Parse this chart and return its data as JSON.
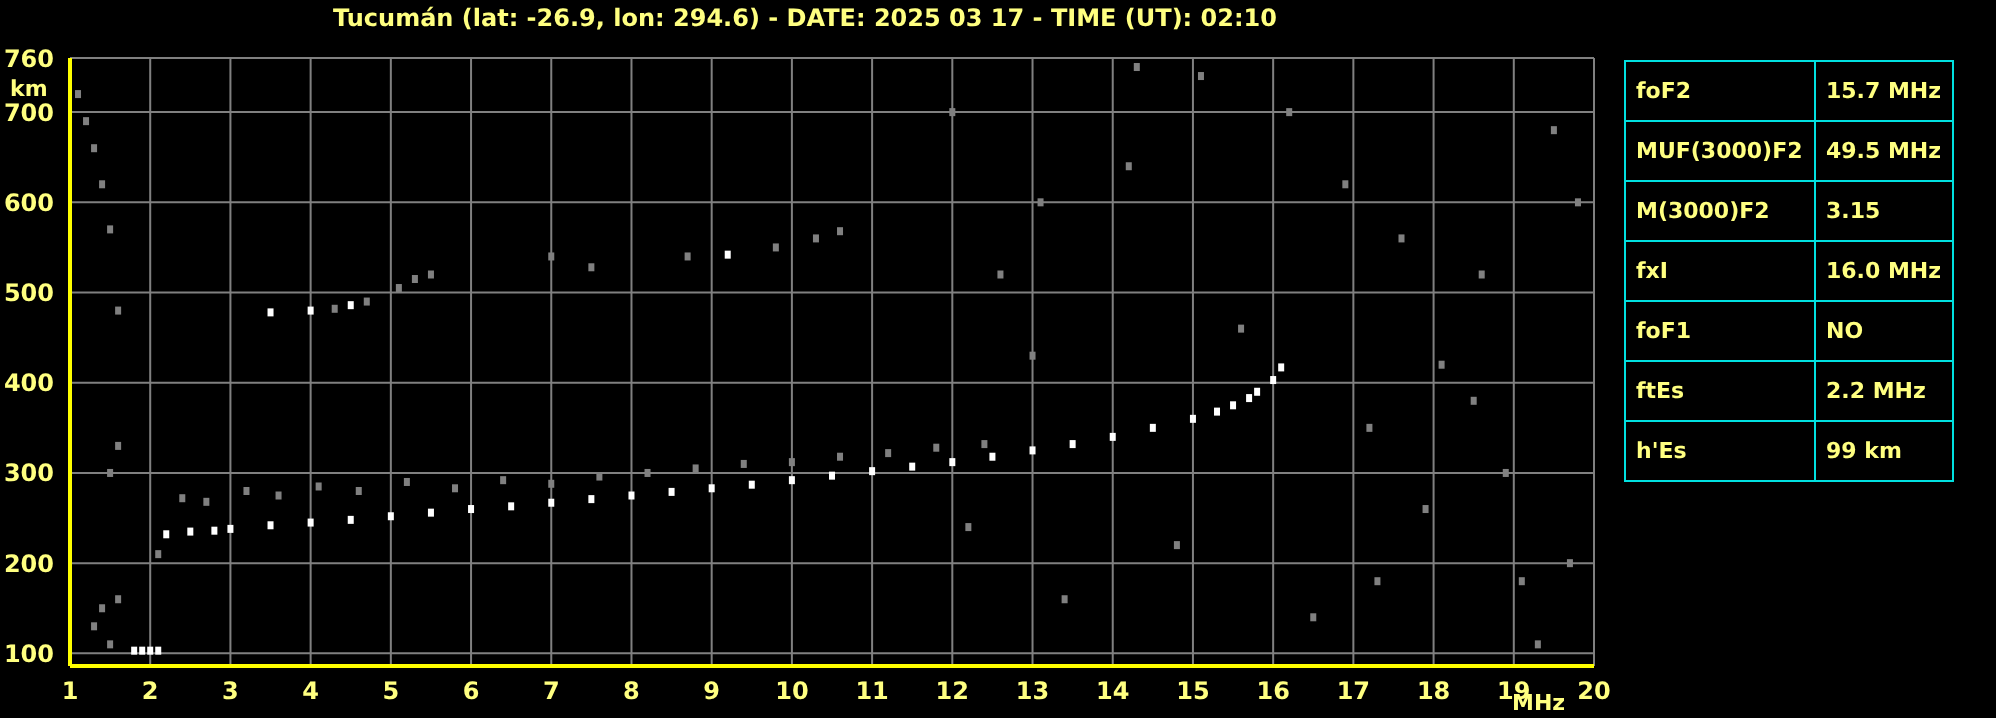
{
  "chart_data": [
    {
      "type": "scatter",
      "title": "Tucumán (lat: -26.9, lon: 294.6) - DATE: 2025 03 17 - TIME (UT): 02:10",
      "xlabel": "MHz",
      "ylabel": "km",
      "xlim": [
        1,
        20
      ],
      "ylim": [
        86,
        760
      ],
      "xticks": [
        1,
        2,
        3,
        4,
        5,
        6,
        7,
        8,
        9,
        10,
        11,
        12,
        13,
        14,
        15,
        16,
        17,
        18,
        19,
        20
      ],
      "yticks": [
        100,
        200,
        300,
        400,
        500,
        600,
        700,
        760
      ],
      "grid": true,
      "marker": "square",
      "series": [
        {
          "color": "#ffffff",
          "x": [
            1.8,
            1.9,
            2.0,
            2.1,
            2.2,
            2.5,
            2.8,
            3.0,
            3.5,
            4.0,
            4.5,
            5.0,
            5.5,
            6.0,
            6.5,
            7.0,
            7.5,
            8.0,
            8.5,
            9.0,
            9.5,
            10.0,
            10.5,
            11.0,
            11.5,
            12.0,
            12.5,
            13.0,
            13.5,
            14.0,
            14.5,
            15.0,
            15.3,
            15.5,
            15.7,
            15.8,
            16.0,
            3.5,
            4.0,
            4.5,
            9.2,
            16.1
          ],
          "values": [
            103,
            103,
            103,
            103,
            232,
            235,
            236,
            238,
            242,
            245,
            248,
            252,
            256,
            260,
            263,
            267,
            271,
            275,
            279,
            283,
            287,
            292,
            297,
            302,
            307,
            312,
            318,
            325,
            332,
            340,
            350,
            360,
            368,
            375,
            383,
            390,
            403,
            478,
            480,
            486,
            542,
            417
          ]
        },
        {
          "color": "#808080",
          "x": [
            2.4,
            2.7,
            3.2,
            3.6,
            4.1,
            4.6,
            5.2,
            5.8,
            6.4,
            7.0,
            7.6,
            8.2,
            8.8,
            9.4,
            10.0,
            10.6,
            11.2,
            11.8,
            12.4,
            4.3,
            4.7,
            5.1,
            5.3,
            5.5,
            7.0,
            7.5,
            8.7,
            9.8,
            10.3,
            10.6,
            1.1,
            1.2,
            1.3,
            1.4,
            1.5,
            1.6,
            1.6,
            1.4,
            1.3,
            1.5,
            2.1,
            1.5,
            1.6,
            12.2,
            13.4,
            14.8,
            16.5,
            17.2,
            18.1,
            18.9,
            19.5,
            17.6,
            16.2,
            15.1,
            14.2,
            13.1,
            12.6,
            17.9,
            19.1,
            18.5,
            16.9,
            15.6,
            14.3,
            13.0,
            12.0,
            19.8,
            19.7,
            19.3,
            18.6,
            17.3
          ],
          "values": [
            272,
            268,
            280,
            275,
            285,
            280,
            290,
            283,
            292,
            288,
            296,
            300,
            305,
            310,
            312,
            318,
            322,
            328,
            332,
            482,
            490,
            505,
            515,
            520,
            540,
            528,
            540,
            550,
            560,
            568,
            720,
            690,
            660,
            620,
            570,
            480,
            160,
            150,
            130,
            110,
            210,
            300,
            330,
            240,
            160,
            220,
            140,
            350,
            420,
            300,
            680,
            560,
            700,
            740,
            640,
            600,
            520,
            260,
            180,
            380,
            620,
            460,
            750,
            430,
            700,
            600,
            200,
            110,
            520,
            180
          ]
        }
      ]
    },
    {
      "type": "other",
      "annotations": [
        "foF2",
        "15.7 MHz",
        "MUF(3000)F2",
        "49.5 MHz",
        "M(3000)F2",
        "3.15",
        "fxI",
        "16.0 MHz",
        "foF1",
        "NO",
        "ftEs",
        "2.2 MHz",
        "h'Es",
        "99 km"
      ]
    }
  ]
}
